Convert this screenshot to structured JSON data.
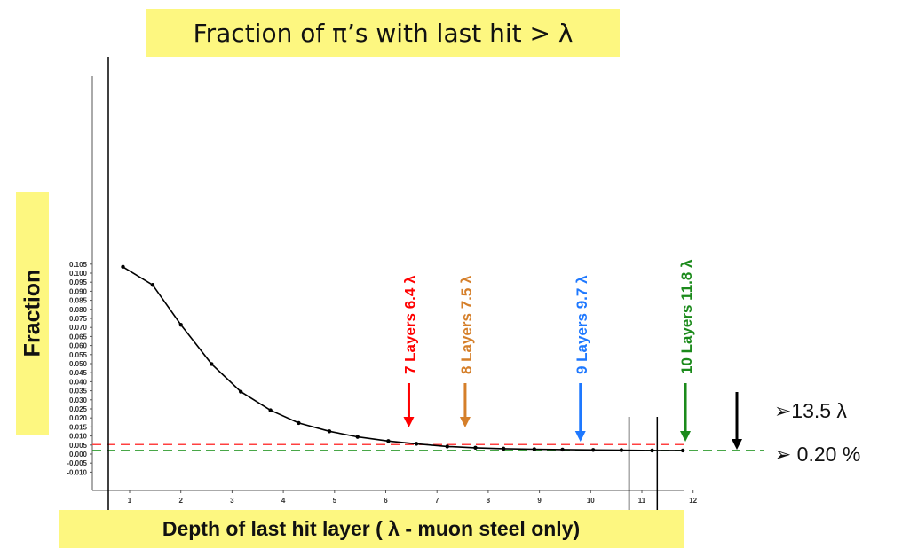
{
  "title": "Fraction of π’s with last hit > λ",
  "ylabel": "Fraction",
  "xlabel": "Depth of last hit layer ( λ - muon steel only)",
  "right_notes": [
    "➢13.5 λ",
    "➢ 0.20 %"
  ],
  "chart_data": {
    "type": "line",
    "title": "Fraction of π’s with last hit > λ",
    "xlabel": "Depth of last hit layer ( λ - muon steel only)",
    "ylabel": "Fraction",
    "xlim": [
      0.7,
      12.2
    ],
    "ylim": [
      -0.01,
      0.106
    ],
    "x_ticks": [
      "1",
      "2",
      "3",
      "4",
      "5",
      "6",
      "7",
      "8",
      "9",
      "10",
      "11",
      "12"
    ],
    "y_ticks": [
      "0.105",
      "0.100",
      "0.095",
      "0.090",
      "0.085",
      "0.080",
      "0.075",
      "0.070",
      "0.065",
      "0.060",
      "0.055",
      "0.050",
      "0.045",
      "0.040",
      "0.035",
      "0.030",
      "0.025",
      "0.020",
      "0.015",
      "0.010",
      "0.005",
      "0.000",
      "-0.005",
      "-0.010"
    ],
    "series": [
      {
        "x": [
          0.87,
          1.45,
          2.0,
          2.6,
          3.17,
          3.75,
          4.3,
          4.9,
          5.45,
          6.05,
          6.6,
          7.2,
          7.75,
          8.3,
          8.9,
          9.45,
          10.05,
          10.6,
          11.2,
          11.8
        ],
        "y": [
          0.1035,
          0.0935,
          0.0715,
          0.0498,
          0.0345,
          0.0242,
          0.0172,
          0.0126,
          0.0095,
          0.0072,
          0.0057,
          0.0042,
          0.0035,
          0.003,
          0.0027,
          0.0025,
          0.0023,
          0.0022,
          0.002,
          0.002
        ],
        "color": "#000000"
      }
    ],
    "reference_lines": [
      {
        "y": 0.0053,
        "color": "#ff4040",
        "style": "dashed"
      },
      {
        "y": 0.002,
        "color": "#2e9b2e",
        "style": "dashed"
      }
    ],
    "vertical_lines_x": [
      0.87,
      10.75,
      11.3
    ],
    "annotations": [
      {
        "text": "7 Layers 6.4 λ",
        "x": 6.45,
        "color": "#ff0000"
      },
      {
        "text": "8 Layers  7.5 λ",
        "x": 7.55,
        "color": "#d57f2a"
      },
      {
        "text": "9 Layers  9.7 λ",
        "x": 9.8,
        "color": "#1e78ff"
      },
      {
        "text": "10 Layers  11.8 λ",
        "x": 11.85,
        "color": "#1b8a1b"
      },
      {
        "text": "",
        "x": 13.5,
        "color": "#000000"
      }
    ]
  }
}
